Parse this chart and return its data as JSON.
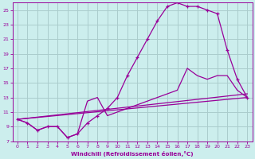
{
  "background_color": "#cceeed",
  "grid_color": "#aacccc",
  "line_color": "#990099",
  "xlabel": "Windchill (Refroidissement éolien,°C)",
  "xlim": [
    -0.5,
    23.5
  ],
  "ylim": [
    7,
    26
  ],
  "yticks": [
    7,
    9,
    11,
    13,
    15,
    17,
    19,
    21,
    23,
    25
  ],
  "xticks": [
    0,
    1,
    2,
    3,
    4,
    5,
    6,
    7,
    8,
    9,
    10,
    11,
    12,
    13,
    14,
    15,
    16,
    17,
    18,
    19,
    20,
    21,
    22,
    23
  ],
  "series": [
    {
      "x": [
        0,
        1,
        2,
        3,
        4,
        5,
        6,
        7,
        8,
        9,
        10,
        11,
        12,
        13,
        14,
        15,
        16,
        17,
        18,
        19,
        20,
        21,
        22,
        23
      ],
      "y": [
        10.0,
        9.5,
        8.5,
        9.0,
        9.0,
        7.5,
        8.0,
        9.5,
        10.5,
        11.5,
        13.0,
        16.0,
        18.5,
        21.0,
        23.5,
        25.5,
        26.0,
        25.5,
        25.5,
        25.0,
        24.5,
        19.5,
        15.5,
        13.0
      ],
      "marker": "+"
    },
    {
      "x": [
        0,
        1,
        2,
        3,
        4,
        5,
        6,
        7,
        8,
        9,
        10,
        11,
        12,
        13,
        14,
        15,
        16,
        17,
        18,
        19,
        20,
        21,
        22,
        23
      ],
      "y": [
        10.0,
        9.5,
        8.5,
        9.0,
        9.0,
        7.5,
        8.0,
        12.5,
        13.0,
        10.5,
        11.0,
        11.5,
        12.0,
        12.5,
        13.0,
        13.5,
        14.0,
        17.0,
        16.0,
        15.5,
        16.0,
        16.0,
        14.0,
        13.0
      ],
      "marker": null
    },
    {
      "x": [
        0,
        23
      ],
      "y": [
        10.0,
        13.0
      ],
      "marker": null
    },
    {
      "x": [
        0,
        23
      ],
      "y": [
        10.0,
        13.5
      ],
      "marker": null
    }
  ]
}
